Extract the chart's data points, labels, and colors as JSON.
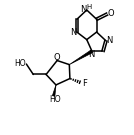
{
  "bg_color": "#ffffff",
  "line_color": "#000000",
  "lw": 1.1,
  "figsize": [
    1.34,
    1.35
  ],
  "dpi": 100,
  "fs": 6.0,
  "xlim": [
    -0.5,
    10.5
  ],
  "ylim": [
    -0.5,
    11.0
  ]
}
